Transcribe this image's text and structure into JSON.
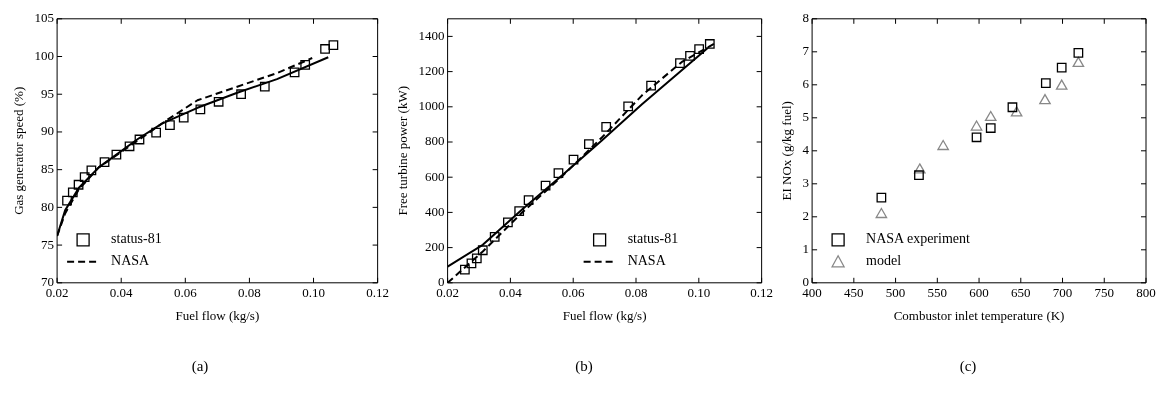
{
  "chart_data": [
    {
      "type": "scatter",
      "xlabel": "Fuel flow (kg/s)",
      "ylabel": "Gas generator speed (%)",
      "xlim": [
        0.02,
        0.12
      ],
      "xticks": [
        {
          "value": 0.02,
          "label": "0.02"
        },
        {
          "value": 0.04,
          "label": "0.04"
        },
        {
          "value": 0.06,
          "label": "0.06"
        },
        {
          "value": 0.08,
          "label": "0.08"
        },
        {
          "value": 0.1,
          "label": "0.10"
        },
        {
          "value": 0.12,
          "label": "0.12"
        }
      ],
      "ylim": [
        70,
        105
      ],
      "yticks": [
        70,
        75,
        80,
        85,
        90,
        95,
        100,
        105
      ],
      "legend": "bottom left",
      "grid": false,
      "annotations": [
        "(a)"
      ],
      "series": [
        {
          "name": "status-81",
          "marker": "square",
          "color": "#000000",
          "x": [
            0.0231,
            0.0249,
            0.0267,
            0.0286,
            0.0307,
            0.0348,
            0.0385,
            0.0426,
            0.0457,
            0.0509,
            0.0552,
            0.0595,
            0.0647,
            0.0704,
            0.0774,
            0.0848,
            0.0941,
            0.0974,
            0.1036,
            0.1062
          ],
          "values": [
            80.9,
            82.0,
            83.0,
            84.0,
            84.9,
            86.0,
            87.0,
            88.1,
            89.0,
            89.9,
            90.9,
            91.9,
            93.0,
            94.0,
            95.0,
            96.0,
            97.9,
            98.9,
            101.0,
            101.5
          ]
        },
        {
          "type": "line",
          "line_style": "solid",
          "color": "#000000",
          "x": [
            0.02,
            0.0225,
            0.0268,
            0.033,
            0.0453,
            0.0527,
            0.0638,
            0.0762,
            0.0886,
            0.1046
          ],
          "values": [
            76.2,
            79.6,
            82.6,
            85.3,
            89.1,
            91.1,
            93.2,
            95.2,
            97.0,
            99.9
          ]
        },
        {
          "name": "NASA",
          "type": "line",
          "line_style": "dashed",
          "color": "#000000",
          "x": [
            0.02,
            0.0225,
            0.0268,
            0.033,
            0.0453,
            0.054,
            0.0638,
            0.0762,
            0.0886,
            0.0996
          ],
          "values": [
            76.2,
            79.2,
            82.4,
            85.3,
            88.9,
            91.5,
            94.2,
            96.0,
            97.8,
            99.8
          ]
        }
      ]
    },
    {
      "type": "scatter",
      "xlabel": "Fuel flow (kg/s)",
      "ylabel": "Free turbine power (kW)",
      "xlim": [
        0.02,
        0.12
      ],
      "xticks": [
        {
          "value": 0.02,
          "label": "0.02"
        },
        {
          "value": 0.04,
          "label": "0.04"
        },
        {
          "value": 0.06,
          "label": "0.06"
        },
        {
          "value": 0.08,
          "label": "0.08"
        },
        {
          "value": 0.1,
          "label": "0.10"
        },
        {
          "value": 0.12,
          "label": "0.12"
        }
      ],
      "ylim": [
        0,
        1500
      ],
      "yticks": [
        0,
        200,
        400,
        600,
        800,
        1000,
        1200,
        1400
      ],
      "legend": "bottom right",
      "grid": false,
      "annotations": [
        "(b)"
      ],
      "series": [
        {
          "name": "status-81",
          "marker": "square",
          "color": "#000000",
          "x": [
            0.0255,
            0.0276,
            0.0293,
            0.0312,
            0.035,
            0.0392,
            0.0428,
            0.0458,
            0.0512,
            0.0553,
            0.0601,
            0.065,
            0.0705,
            0.0775,
            0.0848,
            0.094,
            0.0972,
            0.1001,
            0.1035
          ],
          "values": [
            75,
            110,
            139,
            185,
            261,
            343,
            407,
            470,
            552,
            623,
            700,
            788,
            886,
            1002,
            1120,
            1248,
            1289,
            1328,
            1357
          ]
        },
        {
          "type": "line",
          "line_style": "solid",
          "color": "#000000",
          "x": [
            0.02,
            0.0312,
            0.0439,
            0.0565,
            0.0692,
            0.0819,
            0.101,
            0.1029
          ],
          "values": [
            92,
            216,
            419,
            611,
            810,
            1014,
            1306,
            1336
          ]
        },
        {
          "name": "NASA",
          "type": "line",
          "line_style": "dashed",
          "color": "#000000",
          "x": [
            0.02,
            0.0312,
            0.0439,
            0.0565,
            0.0692,
            0.0819,
            0.0946,
            0.1048
          ],
          "values": [
            0,
            178,
            402,
            606,
            827,
            1065,
            1255,
            1357
          ]
        }
      ]
    },
    {
      "type": "scatter",
      "xlabel": "Combustor inlet temperature (K)",
      "ylabel": "EI NOx (g/kg fuel)",
      "xlim": [
        400,
        800
      ],
      "xticks": [
        400,
        450,
        500,
        550,
        600,
        650,
        700,
        750,
        800
      ],
      "ylim": [
        0,
        8
      ],
      "yticks": [
        0,
        1,
        2,
        3,
        4,
        5,
        6,
        7,
        8
      ],
      "legend": "bottom left",
      "grid": false,
      "annotations": [
        "(c)"
      ],
      "series": [
        {
          "name": "NASA experiment",
          "marker": "square",
          "color": "#000000",
          "x": [
            483,
            528,
            597,
            614,
            640,
            680,
            699,
            719
          ],
          "values": [
            2.58,
            3.26,
            4.41,
            4.69,
            5.32,
            6.05,
            6.52,
            6.97
          ]
        },
        {
          "name": "model",
          "marker": "triangle",
          "color": "#888888",
          "x": [
            483,
            529,
            557,
            597,
            614,
            645,
            679,
            699,
            719
          ],
          "values": [
            2.07,
            3.42,
            4.13,
            4.72,
            5.01,
            5.15,
            5.52,
            5.96,
            6.65
          ]
        }
      ]
    }
  ]
}
